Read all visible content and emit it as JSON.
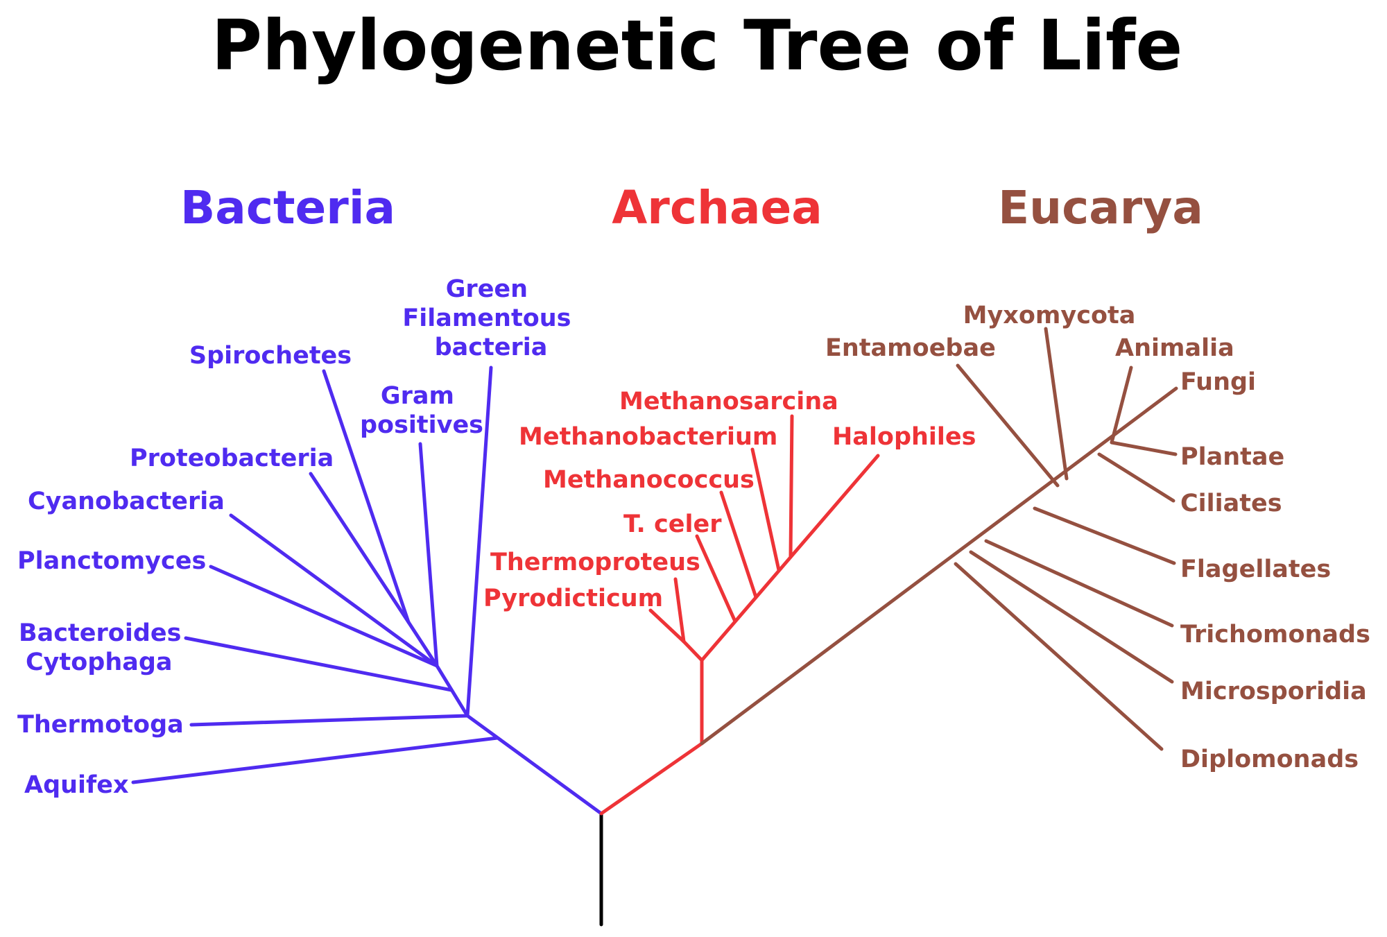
{
  "title": "Phylogenetic Tree of Life",
  "colors": {
    "bacteria": "#4f2bf0",
    "archaea": "#ee3337",
    "eucarya": "#955040",
    "root": "#000000"
  },
  "domains": {
    "bacteria": "Bacteria",
    "archaea": "Archaea",
    "eucarya": "Eucarya"
  },
  "bacteria": {
    "green_filamentous": [
      "Green",
      "Filamentous",
      "bacteria"
    ],
    "spirochetes": "Spirochetes",
    "gram_positives": [
      "Gram",
      "positives"
    ],
    "proteobacteria": "Proteobacteria",
    "cyanobacteria": "Cyanobacteria",
    "planctomyces": "Planctomyces",
    "bacteroides": [
      "Bacteroides",
      "Cytophaga"
    ],
    "thermotoga": "Thermotoga",
    "aquifex": "Aquifex"
  },
  "archaea": {
    "methanosarcina": "Methanosarcina",
    "methanobacterium": "Methanobacterium",
    "halophiles": "Halophiles",
    "methanococcus": "Methanococcus",
    "t_celer": "T. celer",
    "thermoproteus": "Thermoproteus",
    "pyrodicticum": "Pyrodicticum"
  },
  "eucarya": {
    "myxomycota": "Myxomycota",
    "entamoebae": "Entamoebae",
    "animalia": "Animalia",
    "fungi": "Fungi",
    "plantae": "Plantae",
    "ciliates": "Ciliates",
    "flagellates": "Flagellates",
    "trichomonads": "Trichomonads",
    "microsporidia": "Microsporidia",
    "diplomonads": "Diplomonads"
  }
}
